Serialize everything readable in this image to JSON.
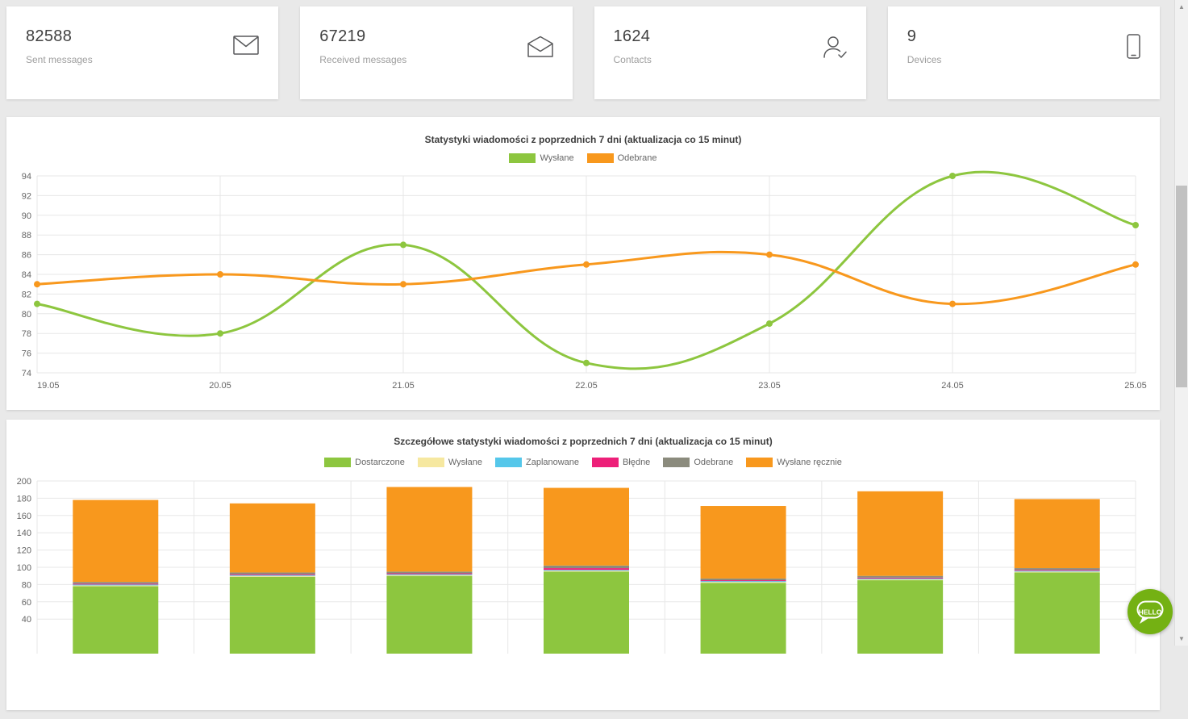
{
  "page": {
    "background": "#e9e9e9"
  },
  "stat_cards": [
    {
      "value": "82588",
      "label": "Sent messages",
      "icon": "mail-closed-icon"
    },
    {
      "value": "67219",
      "label": "Received messages",
      "icon": "mail-open-icon"
    },
    {
      "value": "1624",
      "label": "Contacts",
      "icon": "contact-icon"
    },
    {
      "value": "9",
      "label": "Devices",
      "icon": "device-icon"
    }
  ],
  "chart_data": [
    {
      "type": "line",
      "title": "Statystyki wiadomości z poprzednich 7 dni (aktualizacja co 15 minut)",
      "categories": [
        "19.05",
        "20.05",
        "21.05",
        "22.05",
        "23.05",
        "24.05",
        "25.05"
      ],
      "series": [
        {
          "name": "Wysłane",
          "color": "#8dc63f",
          "values": [
            81,
            78,
            87,
            75,
            79,
            94,
            89
          ]
        },
        {
          "name": "Odebrane",
          "color": "#f8981d",
          "values": [
            83,
            84,
            83,
            85,
            86,
            81,
            85
          ]
        }
      ],
      "ylim": [
        74,
        94
      ],
      "y_ticks": [
        94,
        92,
        90,
        88,
        86,
        84,
        82,
        80,
        78,
        76,
        74
      ],
      "grid": true,
      "legend_position": "top"
    },
    {
      "type": "bar",
      "stacked": true,
      "title": "Szczegółowe statystyki wiadomości z poprzednich 7 dni (aktualizacja co 15 minut)",
      "bars": 7,
      "series": [
        {
          "name": "Dostarczone",
          "color": "#8dc63f",
          "values": [
            78,
            89,
            90,
            95,
            82,
            85,
            94
          ]
        },
        {
          "name": "Wysłane",
          "color": "#f6e8a0",
          "values": [
            1,
            1,
            1,
            1,
            1,
            1,
            1
          ]
        },
        {
          "name": "Zaplanowane",
          "color": "#55c7ea",
          "values": [
            1,
            1,
            1,
            1,
            1,
            1,
            1
          ]
        },
        {
          "name": "Błędne",
          "color": "#ed2079",
          "values": [
            1,
            1,
            1,
            2,
            1,
            1,
            1
          ]
        },
        {
          "name": "Odebrane",
          "color": "#8b8b7d",
          "values": [
            2,
            2,
            2,
            3,
            2,
            2,
            2
          ]
        },
        {
          "name": "Wysłane ręcznie",
          "color": "#f8981d",
          "values": [
            95,
            80,
            98,
            90,
            84,
            98,
            80
          ]
        }
      ],
      "ylim": [
        0,
        200
      ],
      "y_ticks": [
        200,
        180,
        160,
        140,
        120,
        100,
        80,
        60,
        40
      ],
      "grid": true,
      "legend_position": "top"
    }
  ],
  "chat_button": {
    "label": "HELLO",
    "color": "#74b113"
  }
}
